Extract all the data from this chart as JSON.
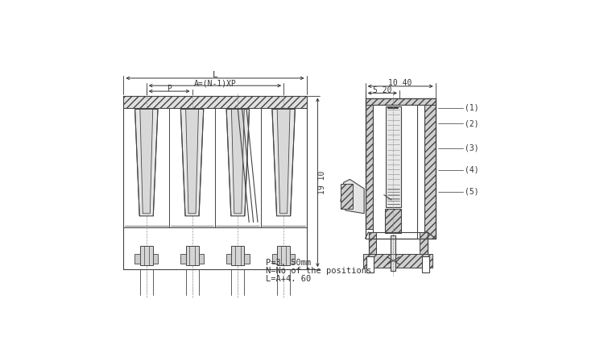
{
  "bg_color": "#ffffff",
  "line_color": "#444444",
  "dim_color": "#333333",
  "text_color": "#333333",
  "hatch_fc": "#cccccc",
  "notes": [
    "P=3. 50mm",
    "N=No of the positions",
    "L=A+4. 60"
  ],
  "parts": [
    "(1)",
    "(2)",
    "(3)",
    "(4)",
    "(5)"
  ],
  "dim_texts": {
    "L": "L",
    "A": "A=(N-1)XP",
    "P": "P",
    "w1": "10 40",
    "w2": "5 20",
    "h1": "19 10"
  },
  "fig_width": 7.5,
  "fig_height": 4.23
}
